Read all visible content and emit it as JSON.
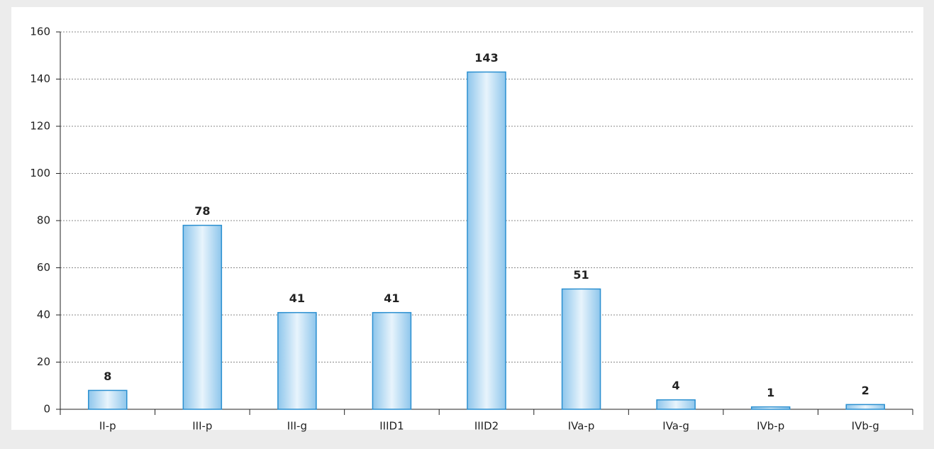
{
  "chart_data": {
    "type": "bar",
    "categories": [
      "II-p",
      "III-p",
      "III-g",
      "IIID1",
      "IIID2",
      "IVa-p",
      "IVa-g",
      "IVb-p",
      "IVb-g"
    ],
    "values": [
      8,
      78,
      41,
      41,
      143,
      51,
      4,
      1,
      2
    ],
    "color": "#2a8fd0",
    "ylim": [
      0,
      160
    ],
    "yticks": [
      0,
      20,
      40,
      60,
      80,
      100,
      120,
      140,
      160
    ],
    "grid": true
  }
}
